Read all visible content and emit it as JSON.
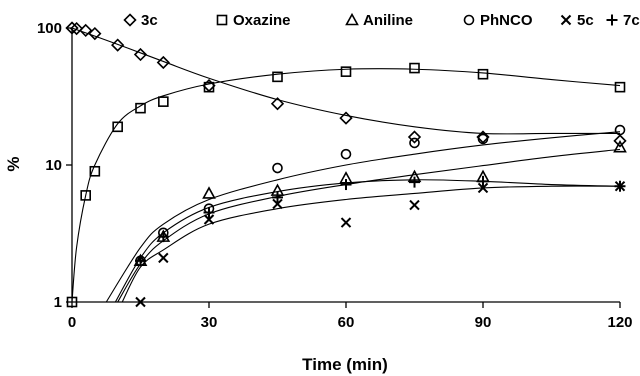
{
  "chart_data": {
    "type": "scatter",
    "xlabel": "Time (min)",
    "ylabel": "%",
    "xlim": [
      0,
      120
    ],
    "ylim": [
      1,
      100
    ],
    "yscale": "log",
    "x_ticks": [
      0,
      30,
      60,
      90,
      120
    ],
    "y_ticks": [
      1,
      10,
      100
    ],
    "grid": false,
    "legend_position": "top",
    "series": [
      {
        "name": "3c",
        "marker": "diamond",
        "points": [
          [
            0,
            100
          ],
          [
            1,
            99
          ],
          [
            3,
            96
          ],
          [
            5,
            91
          ],
          [
            10,
            75
          ],
          [
            15,
            64
          ],
          [
            20,
            56
          ],
          [
            30,
            38
          ],
          [
            45,
            28
          ],
          [
            60,
            22
          ],
          [
            75,
            16
          ],
          [
            90,
            16
          ],
          [
            120,
            15
          ]
        ],
        "fit": [
          [
            0,
            100
          ],
          [
            10,
            76
          ],
          [
            20,
            57
          ],
          [
            30,
            43
          ],
          [
            45,
            30
          ],
          [
            60,
            23
          ],
          [
            75,
            19
          ],
          [
            90,
            17
          ],
          [
            105,
            17
          ],
          [
            120,
            17
          ]
        ]
      },
      {
        "name": "Oxazine",
        "marker": "square",
        "points": [
          [
            0,
            1
          ],
          [
            3,
            6
          ],
          [
            5,
            9
          ],
          [
            10,
            19
          ],
          [
            15,
            26
          ],
          [
            20,
            29
          ],
          [
            30,
            37
          ],
          [
            45,
            44
          ],
          [
            60,
            48
          ],
          [
            75,
            51
          ],
          [
            90,
            46
          ],
          [
            120,
            37
          ]
        ],
        "fit": [
          [
            0,
            1
          ],
          [
            1,
            2.5
          ],
          [
            3,
            6
          ],
          [
            5,
            10
          ],
          [
            10,
            20
          ],
          [
            15,
            27
          ],
          [
            20,
            32
          ],
          [
            30,
            39
          ],
          [
            45,
            46
          ],
          [
            60,
            50
          ],
          [
            75,
            50
          ],
          [
            90,
            47
          ],
          [
            105,
            42
          ],
          [
            120,
            38
          ]
        ]
      },
      {
        "name": "Aniline",
        "marker": "triangle",
        "points": [
          [
            15,
            2
          ],
          [
            20,
            3
          ],
          [
            30,
            6.2
          ],
          [
            45,
            6.5
          ],
          [
            60,
            8
          ],
          [
            75,
            8.2
          ],
          [
            90,
            8.2
          ],
          [
            120,
            13.5
          ]
        ],
        "fit": [
          [
            9.5,
            1
          ],
          [
            15,
            2.1
          ],
          [
            20,
            3.2
          ],
          [
            30,
            4.9
          ],
          [
            45,
            6.4
          ],
          [
            60,
            7.4
          ],
          [
            75,
            7.8
          ],
          [
            90,
            7.6
          ],
          [
            105,
            7.2
          ],
          [
            120,
            7
          ]
        ]
      },
      {
        "name": "PhNCO",
        "marker": "circle",
        "points": [
          [
            15,
            2
          ],
          [
            20,
            3.2
          ],
          [
            30,
            4.8
          ],
          [
            45,
            9.5
          ],
          [
            60,
            12
          ],
          [
            75,
            14.5
          ],
          [
            90,
            15.5
          ],
          [
            120,
            18
          ]
        ],
        "fit": [
          [
            7.5,
            1
          ],
          [
            15,
            2.5
          ],
          [
            20,
            3.7
          ],
          [
            30,
            5.6
          ],
          [
            45,
            7.8
          ],
          [
            60,
            10
          ],
          [
            75,
            12
          ],
          [
            90,
            14
          ],
          [
            105,
            15.8
          ],
          [
            120,
            17.5
          ]
        ]
      },
      {
        "name": "5c",
        "marker": "x",
        "points": [
          [
            15,
            1
          ],
          [
            20,
            2.1
          ],
          [
            30,
            4
          ],
          [
            45,
            5.2
          ],
          [
            60,
            3.8
          ],
          [
            75,
            5.1
          ],
          [
            90,
            6.8
          ],
          [
            120,
            7
          ]
        ],
        "fit": [
          [
            11,
            1
          ],
          [
            15,
            1.8
          ],
          [
            20,
            2.4
          ],
          [
            30,
            3.7
          ],
          [
            45,
            4.8
          ],
          [
            60,
            5.6
          ],
          [
            75,
            6.2
          ],
          [
            90,
            6.8
          ],
          [
            105,
            7
          ],
          [
            120,
            7
          ]
        ]
      },
      {
        "name": "7c",
        "marker": "plus",
        "points": [
          [
            15,
            2
          ],
          [
            20,
            3
          ],
          [
            30,
            4.5
          ],
          [
            45,
            5.8
          ],
          [
            60,
            7.2
          ],
          [
            75,
            7.5
          ],
          [
            90,
            7.6
          ],
          [
            120,
            7
          ]
        ],
        "fit": [
          [
            10,
            1
          ],
          [
            15,
            1.9
          ],
          [
            20,
            2.8
          ],
          [
            30,
            4.4
          ],
          [
            45,
            5.9
          ],
          [
            60,
            7.2
          ],
          [
            75,
            8.5
          ],
          [
            90,
            9.9
          ],
          [
            105,
            11.5
          ],
          [
            120,
            13
          ]
        ]
      }
    ]
  }
}
